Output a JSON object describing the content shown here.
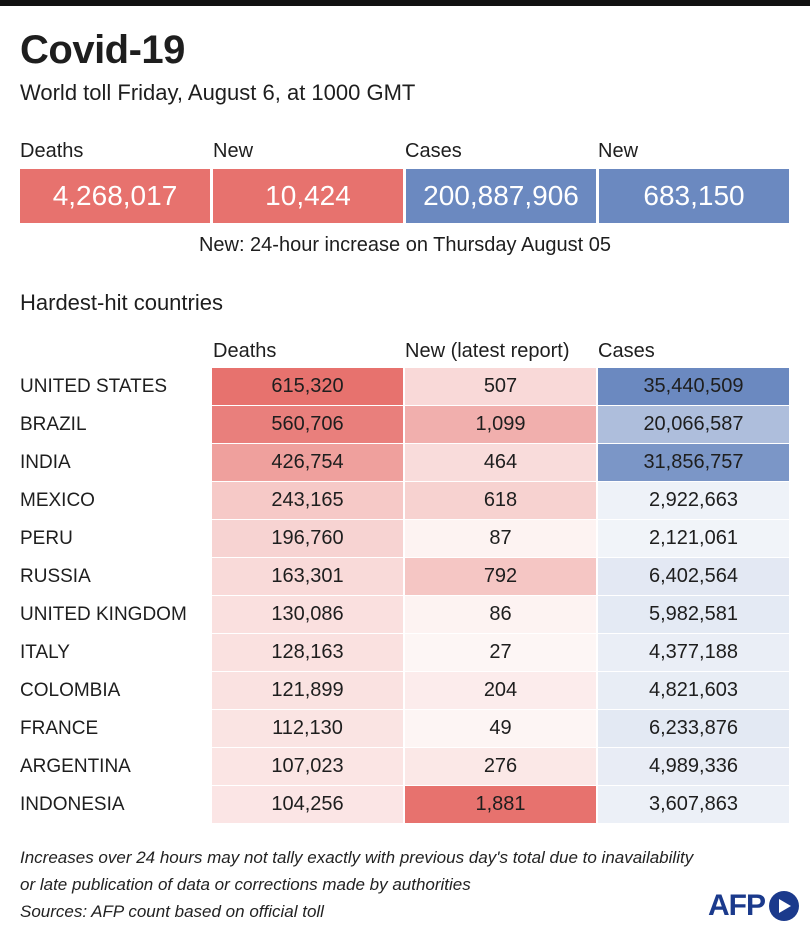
{
  "title": "Covid-19",
  "subtitle": "World toll Friday, August 6,  at 1000 GMT",
  "summary": {
    "deaths_label": "Deaths",
    "deaths_value": "4,268,017",
    "new_deaths_label": "New",
    "new_deaths_value": "10,424",
    "cases_label": "Cases",
    "cases_value": "200,887,906",
    "new_cases_label": "New",
    "new_cases_value": "683,150",
    "note": "New: 24-hour increase on Thursday August 05"
  },
  "colors": {
    "deaths": "#e7726e",
    "cases": "#6b89c0"
  },
  "table": {
    "section_title": "Hardest-hit countries",
    "headers": [
      "Deaths",
      "New (latest report)",
      "Cases"
    ]
  },
  "chart_data": {
    "type": "table",
    "columns": [
      "Deaths",
      "New (latest report)",
      "Cases"
    ],
    "rows": [
      {
        "country": "UNITED STATES",
        "deaths": 615320,
        "new": 507,
        "cases": 35440509
      },
      {
        "country": "BRAZIL",
        "deaths": 560706,
        "new": 1099,
        "cases": 20066587
      },
      {
        "country": "INDIA",
        "deaths": 426754,
        "new": 464,
        "cases": 31856757
      },
      {
        "country": "MEXICO",
        "deaths": 243165,
        "new": 618,
        "cases": 2922663
      },
      {
        "country": "PERU",
        "deaths": 196760,
        "new": 87,
        "cases": 2121061
      },
      {
        "country": "RUSSIA",
        "deaths": 163301,
        "new": 792,
        "cases": 6402564
      },
      {
        "country": "UNITED KINGDOM",
        "deaths": 130086,
        "new": 86,
        "cases": 5982581
      },
      {
        "country": "ITALY",
        "deaths": 128163,
        "new": 27,
        "cases": 4377188
      },
      {
        "country": "COLOMBIA",
        "deaths": 121899,
        "new": 204,
        "cases": 4821603
      },
      {
        "country": "FRANCE",
        "deaths": 112130,
        "new": 49,
        "cases": 6233876
      },
      {
        "country": "ARGENTINA",
        "deaths": 107023,
        "new": 276,
        "cases": 4989336
      },
      {
        "country": "INDONESIA",
        "deaths": 104256,
        "new": 1881,
        "cases": 3607863
      }
    ]
  },
  "notes": [
    "Increases over 24 hours may not tally exactly with previous day's total due to inavailability",
    "or late publication of data or corrections made by authorities",
    "Sources: AFP count based on official toll"
  ],
  "logo_text": "AFP"
}
